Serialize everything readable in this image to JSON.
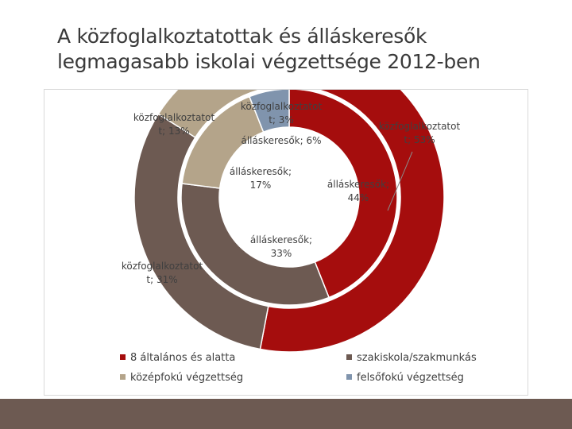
{
  "slide": {
    "title_line1": "A közfoglalkoztatottak és álláskeresők",
    "title_line2": "legmagasabb iskolai végzettsége 2012-ben"
  },
  "chart_data": {
    "type": "doughnut",
    "title": "",
    "legend_position": "bottom",
    "categories": [
      "8 általános és alatta",
      "szakiskola/szakmunkás",
      "középfokú végzettség",
      "felsőfokú végzettség"
    ],
    "colors": [
      "#a50d0d",
      "#6d5a52",
      "#b4a48a",
      "#8094ad"
    ],
    "series": [
      {
        "name": "közfoglalkoztatott",
        "ring": "outer",
        "values": [
          53,
          31,
          13,
          3
        ],
        "label_lines": [
          [
            "közfoglalkoztatot",
            "t; 53%"
          ],
          [
            "közfoglalkoztatot",
            "t; 31%"
          ],
          [
            "közfoglalkoztatot",
            "t; 13%"
          ],
          [
            "közfoglalkoztatot",
            "t; 3%"
          ]
        ]
      },
      {
        "name": "álláskeresők",
        "ring": "inner",
        "values": [
          44,
          33,
          17,
          6
        ],
        "label_lines": [
          [
            "álláskeresők;",
            "44%"
          ],
          [
            "álláskeresők;",
            "33%"
          ],
          [
            "álláskeresők;",
            "17%"
          ],
          [
            "álláskeresők; 6%"
          ]
        ]
      }
    ]
  }
}
